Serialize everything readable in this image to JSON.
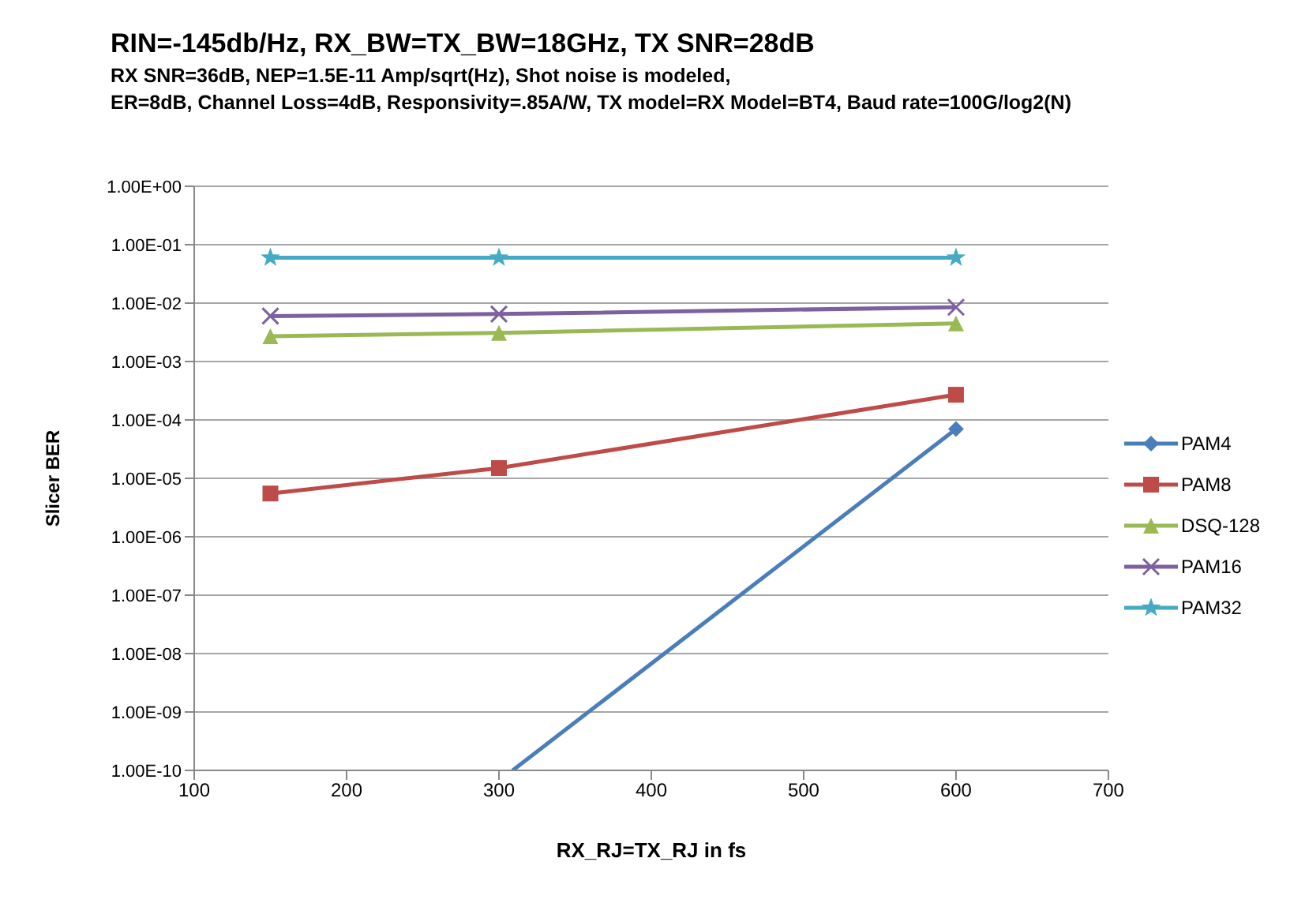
{
  "chart_data": {
    "type": "line",
    "title": "RIN=-145db/Hz, RX_BW=TX_BW=18GHz,  TX SNR=28dB",
    "subtitle": "RX  SNR=36dB, NEP=1.5E-11 Amp/sqrt(Hz), Shot noise is modeled,\nER=8dB, Channel Loss=4dB, Responsivity=.85A/W, TX model=RX Model=BT4, Baud rate=100G/log2(N)",
    "xlabel": "RX_RJ=TX_RJ in fs",
    "ylabel": "Slicer BER",
    "x": [
      150,
      300,
      600
    ],
    "series": [
      {
        "name": "PAM4",
        "color": "#4a7ebb",
        "marker": "diamond",
        "x": [
          309,
          600
        ],
        "values": [
          1e-10,
          7e-05
        ]
      },
      {
        "name": "PAM8",
        "color": "#be4b48",
        "marker": "square",
        "values": [
          5.5e-06,
          1.5e-05,
          0.00027
        ]
      },
      {
        "name": "DSQ-128",
        "color": "#98b954",
        "marker": "triangle",
        "values": [
          0.0027,
          0.0031,
          0.0045
        ]
      },
      {
        "name": "PAM16",
        "color": "#7d60a0",
        "marker": "cross",
        "values": [
          0.006,
          0.0065,
          0.0085
        ]
      },
      {
        "name": "PAM32",
        "color": "#46aac5",
        "marker": "star",
        "values": [
          0.06,
          0.06,
          0.06
        ]
      }
    ],
    "xlim": [
      100,
      700
    ],
    "xticks": [
      100,
      200,
      300,
      400,
      500,
      600,
      700
    ],
    "ylim": [
      1e-10,
      1
    ],
    "yticks": [
      {
        "value": 1e-10,
        "label": "1.00E-10"
      },
      {
        "value": 1e-09,
        "label": "1.00E-09"
      },
      {
        "value": 1e-08,
        "label": "1.00E-08"
      },
      {
        "value": 1e-07,
        "label": "1.00E-07"
      },
      {
        "value": 1e-06,
        "label": "1.00E-06"
      },
      {
        "value": 1e-05,
        "label": "1.00E-05"
      },
      {
        "value": 0.0001,
        "label": "1.00E-04"
      },
      {
        "value": 0.001,
        "label": "1.00E-03"
      },
      {
        "value": 0.01,
        "label": "1.00E-02"
      },
      {
        "value": 0.1,
        "label": "1.00E-01"
      },
      {
        "value": 1,
        "label": "1.00E+00"
      }
    ],
    "log": "y",
    "grid": "y",
    "legend": "right",
    "line_style": "solid"
  }
}
